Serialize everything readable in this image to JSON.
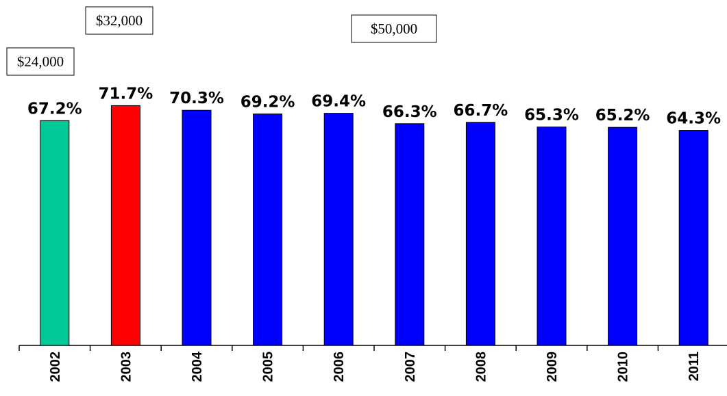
{
  "chart_data": {
    "type": "bar",
    "categories": [
      "2002",
      "2003",
      "2004",
      "2005",
      "2006",
      "2007",
      "2008",
      "2009",
      "2010",
      "2011"
    ],
    "values": [
      67.2,
      71.7,
      70.3,
      69.2,
      69.4,
      66.3,
      66.7,
      65.3,
      65.2,
      64.3
    ],
    "value_labels": [
      "67.2%",
      "71.7%",
      "70.3%",
      "69.2%",
      "69.4%",
      "66.3%",
      "66.7%",
      "65.3%",
      "65.2%",
      "64.3%"
    ],
    "colors": [
      "#00c896",
      "#ff0000",
      "#0000ff",
      "#0000ff",
      "#0000ff",
      "#0000ff",
      "#0000ff",
      "#0000ff",
      "#0000ff",
      "#0000ff"
    ],
    "annotations": [
      "$24,000",
      "$32,000",
      "$50,000"
    ]
  }
}
